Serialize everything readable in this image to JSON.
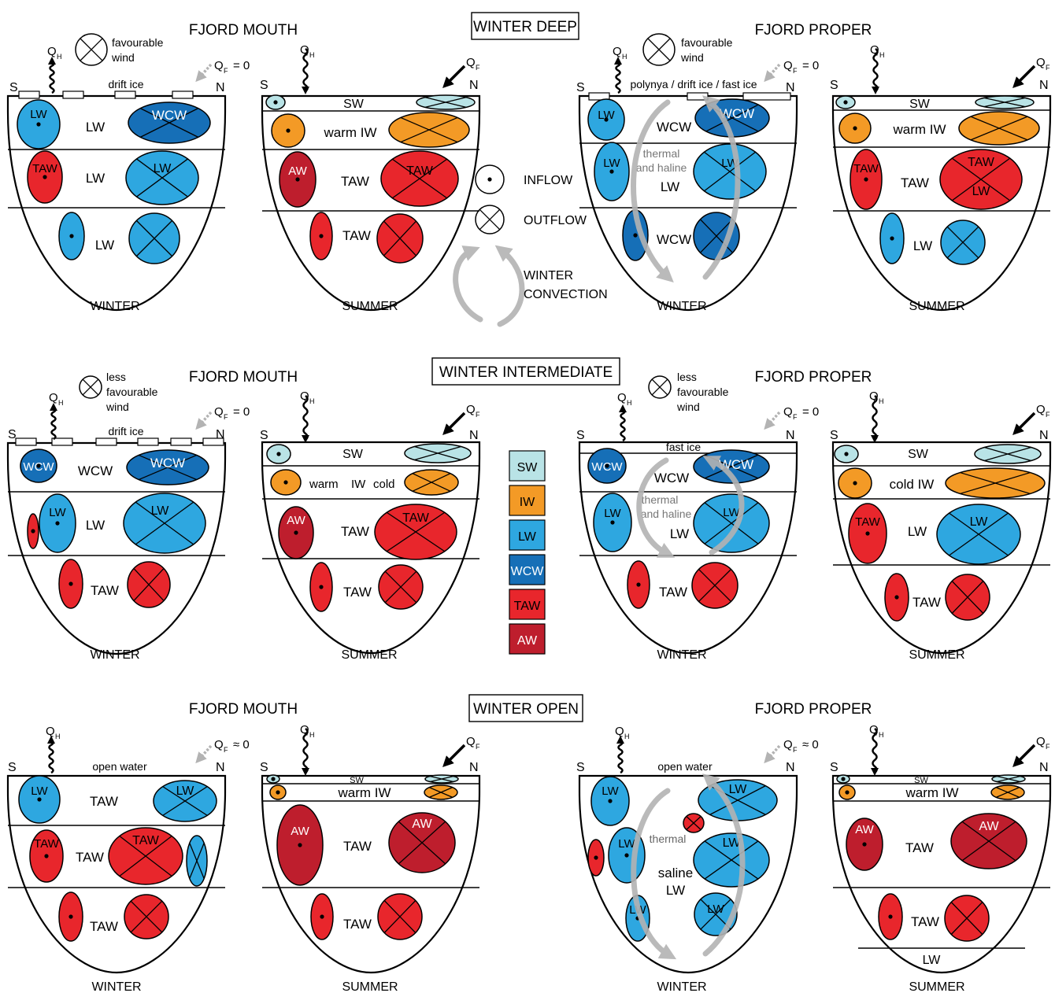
{
  "colors": {
    "SW": "#b9e3e6",
    "IW": "#f39a26",
    "LW": "#2ea7e0",
    "WCW": "#166fb7",
    "TAW": "#e8262c",
    "AW": "#be1e2d",
    "ink": "#000000",
    "convection": "#b3b3b3"
  },
  "headings": {
    "fjord_mouth": "FJORD MOUTH",
    "fjord_proper": "FJORD PROPER",
    "winter_deep": "WINTER DEEP",
    "winter_intermediate": "WINTER INTERMEDIATE",
    "winter_open": "WINTER OPEN"
  },
  "labels": {
    "winter": "WINTER",
    "summer": "SUMMER",
    "south": "S",
    "north": "N",
    "QH": "Q",
    "QH_sub": "H",
    "QF": "Q",
    "QF_sub": "F",
    "qf_zero": "= 0",
    "qf_approx_zero": "≈ 0",
    "favourable_wind": [
      "favourable",
      "wind"
    ],
    "less_favourable_wind": [
      "less",
      "favourable",
      "wind"
    ],
    "drift_ice": "drift ice",
    "polynya": "polynya / drift ice / fast ice",
    "fast_ice": "fast ice",
    "open_water": "open water",
    "thermal_haline": [
      "thermal",
      "and haline"
    ],
    "thermal": "thermal",
    "saline_lw": [
      "saline",
      "LW"
    ],
    "warm_iw": "warm IW",
    "cold_iw": "cold IW",
    "warm": "warm",
    "iw": "IW",
    "cold": "cold",
    "SW": "SW",
    "LW": "LW",
    "TAW": "TAW",
    "WCW": "WCW",
    "AW": "AW"
  },
  "center_legend": {
    "inflow": "INFLOW",
    "outflow": "OUTFLOW",
    "convection": [
      "WINTER",
      "CONVECTION"
    ]
  },
  "color_legend": [
    "SW",
    "IW",
    "LW",
    "WCW",
    "TAW",
    "AW"
  ]
}
